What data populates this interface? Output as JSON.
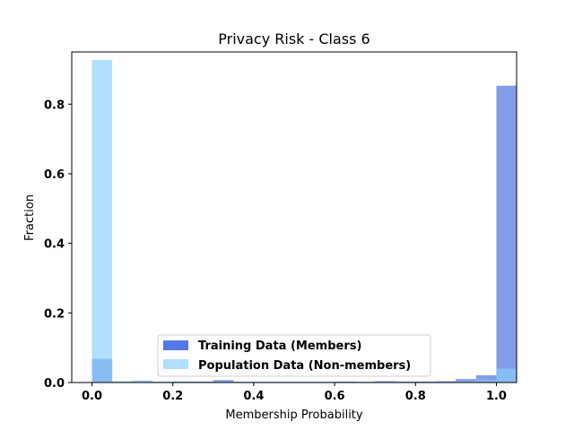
{
  "chart_data": {
    "type": "bar",
    "title": "Privacy Risk - Class 6",
    "xlabel": "Membership Probability",
    "ylabel": "Fraction",
    "xlim": [
      -0.05,
      1.05
    ],
    "ylim": [
      0,
      0.95
    ],
    "x_ticks": [
      "0.0",
      "0.2",
      "0.4",
      "0.6",
      "0.8",
      "1.0"
    ],
    "y_ticks": [
      "0.0",
      "0.2",
      "0.4",
      "0.6",
      "0.8"
    ],
    "bin_edges": [
      0.0,
      0.05,
      0.1,
      0.15,
      0.2,
      0.25,
      0.3,
      0.35,
      0.4,
      0.45,
      0.5,
      0.55,
      0.6,
      0.65,
      0.7,
      0.75,
      0.8,
      0.85,
      0.9,
      0.95,
      1.0
    ],
    "series": [
      {
        "name": "Training Data (Members)",
        "color": "#4169e1",
        "values": [
          0.068,
          0.002,
          0.004,
          0.002,
          0.003,
          0.003,
          0.007,
          0.002,
          0.002,
          0.002,
          0.002,
          0.002,
          0.003,
          0.002,
          0.004,
          0.003,
          0.003,
          0.004,
          0.01,
          0.021,
          0.853
        ]
      },
      {
        "name": "Population Data (Non-members)",
        "color": "#87cefa",
        "values": [
          0.927,
          0.004,
          0.006,
          0.003,
          0.003,
          0.002,
          0.002,
          0.002,
          0.002,
          0.002,
          0.002,
          0.002,
          0.002,
          0.002,
          0.002,
          0.002,
          0.002,
          0.003,
          0.004,
          0.007,
          0.04
        ]
      }
    ],
    "legend": {
      "position": "lower-center",
      "entries": [
        "Training Data (Members)",
        "Population Data (Non-members)"
      ]
    },
    "grid": false
  }
}
